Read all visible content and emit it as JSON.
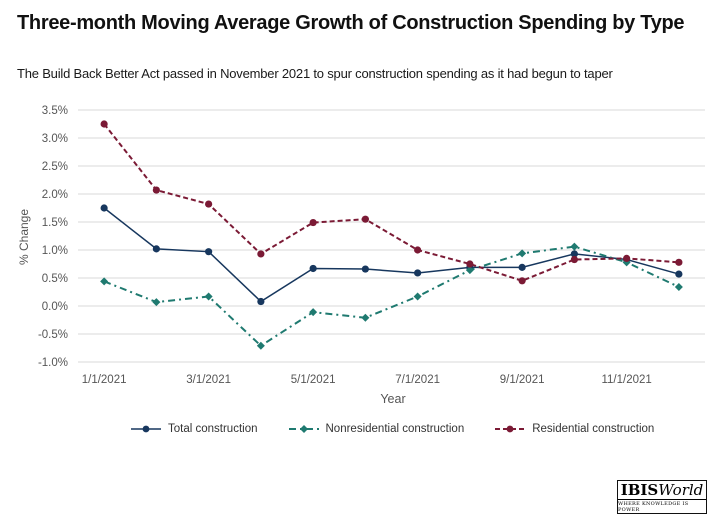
{
  "title": "Three-month Moving Average Growth of Construction Spending by Type",
  "subtitle": "The Build Back Better Act passed in November 2021 to spur construction spending as it had begun to taper",
  "logo": {
    "word_bold": "IBIS",
    "word_italic": "World",
    "tagline": "WHERE KNOWLEDGE IS POWER"
  },
  "chart_data": {
    "type": "line",
    "xlabel": "Year",
    "ylabel": "% Change",
    "ylim": [
      -1.0,
      3.5
    ],
    "yticks": [
      "-1.0%",
      "-0.5%",
      "0.0%",
      "0.5%",
      "1.0%",
      "1.5%",
      "2.0%",
      "2.5%",
      "3.0%",
      "3.5%"
    ],
    "ytick_values": [
      -1.0,
      -0.5,
      0.0,
      0.5,
      1.0,
      1.5,
      2.0,
      2.5,
      3.0,
      3.5
    ],
    "x": [
      "1/1/2021",
      "2/1/2021",
      "3/1/2021",
      "4/1/2021",
      "5/1/2021",
      "6/1/2021",
      "7/1/2021",
      "8/1/2021",
      "9/1/2021",
      "10/1/2021",
      "11/1/2021",
      "12/1/2021"
    ],
    "xticks": [
      "1/1/2021",
      "3/1/2021",
      "5/1/2021",
      "7/1/2021",
      "9/1/2021",
      "11/1/2021"
    ],
    "grid": "horizontal",
    "legend": "bottom",
    "series": [
      {
        "name": "Total construction",
        "color": "#17375e",
        "style": "solid",
        "values": [
          1.75,
          1.02,
          0.97,
          0.08,
          0.67,
          0.66,
          0.59,
          0.69,
          0.69,
          0.93,
          0.83,
          0.57
        ]
      },
      {
        "name": "Nonresidential construction",
        "color": "#1f7a70",
        "style": "dashdot",
        "values": [
          0.44,
          0.07,
          0.17,
          -0.71,
          -0.11,
          -0.21,
          0.17,
          0.64,
          0.94,
          1.06,
          0.78,
          0.34
        ]
      },
      {
        "name": "Residential construction",
        "color": "#7b1a35",
        "style": "dashed",
        "values": [
          3.25,
          2.07,
          1.82,
          0.93,
          1.49,
          1.55,
          1.0,
          0.75,
          0.45,
          0.83,
          0.85,
          0.78
        ]
      }
    ]
  }
}
